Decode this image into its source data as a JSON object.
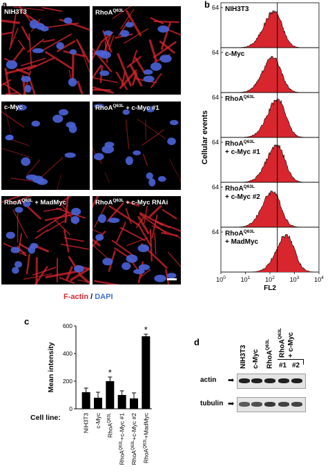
{
  "panel_a": {
    "letter": "a",
    "images": [
      {
        "label": "NIH3T3",
        "sup": "",
        "suffix": "",
        "density": "high"
      },
      {
        "label": "RhoA",
        "sup": "Q63L",
        "suffix": "",
        "density": "high"
      },
      {
        "label": "c-Myc",
        "sup": "",
        "suffix": "",
        "density": "low"
      },
      {
        "label": "RhoA",
        "sup": "Q63L",
        "suffix": " + c-Myc #1",
        "density": "low"
      },
      {
        "label": "RhoA",
        "sup": "Q63L",
        "suffix": " + MadMyc",
        "density": "high"
      },
      {
        "label": "RhoA",
        "sup": "Q63L",
        "suffix": " + c-Myc RNAi",
        "density": "high"
      }
    ],
    "legend_factin": "F-actin",
    "legend_sep": " / ",
    "legend_dapi": "DAPI",
    "colors": {
      "actin": "#d8262e",
      "dapi": "#4a63d8"
    }
  },
  "panel_b": {
    "letter": "b",
    "ylabel": "Cellular events",
    "xlabel": "FL2",
    "ymax_label": "64",
    "x_ticks": [
      {
        "base": "10",
        "exp": "0"
      },
      {
        "base": "10",
        "exp": "1"
      },
      {
        "base": "10",
        "exp": "2"
      },
      {
        "base": "10",
        "exp": "3"
      },
      {
        "base": "10",
        "exp": "4"
      }
    ]
  },
  "panel_c": {
    "letter": "c",
    "cell_line_label": "Cell line:",
    "bar_labels": [
      {
        "main": "NIH3T3",
        "sup": "",
        "suffix": ""
      },
      {
        "main": "c-Myc",
        "sup": "",
        "suffix": ""
      },
      {
        "main": "RhoA",
        "sup": "Q63L",
        "suffix": ""
      },
      {
        "main": "RhoA",
        "sup": "Q63L",
        "suffix": "+c-Myc #1"
      },
      {
        "main": "RhoA",
        "sup": "Q63L",
        "suffix": "+c-Myc #2"
      },
      {
        "main": "RhoA",
        "sup": "Q63L",
        "suffix": "+MadMyc"
      }
    ]
  },
  "panel_d": {
    "letter": "d",
    "lanes": [
      {
        "main": "NIH3T3",
        "sup": "",
        "suffix": ""
      },
      {
        "main": "c-Myc",
        "sup": "",
        "suffix": ""
      },
      {
        "main": "RhoA",
        "sup": "Q63L",
        "suffix": ""
      }
    ],
    "group_label_main": "RhoA",
    "group_label_sup": "Q63L",
    "group_label_line2": "+ c-Myc",
    "sublanes": [
      "#1",
      "#2"
    ],
    "rows": [
      {
        "label": "actin",
        "intensities": [
          0.95,
          0.95,
          0.95,
          0.95,
          0.95
        ]
      },
      {
        "label": "tubulin",
        "intensities": [
          0.7,
          0.75,
          0.85,
          0.8,
          0.8
        ]
      }
    ]
  },
  "chart_data": [
    {
      "type": "area",
      "panel": "b",
      "xscale": "log",
      "xlim": [
        1,
        10000
      ],
      "ylim": [
        0,
        64
      ],
      "xlabel": "FL2",
      "ylabel": "Cellular events",
      "reference_line_x": 200,
      "series": [
        {
          "name": "NIH3T3",
          "peak_x": 150,
          "peak_y": 56
        },
        {
          "name": "c-Myc",
          "peak_x": 135,
          "peak_y": 55
        },
        {
          "name": "RhoAQ63L",
          "peak_x": 210,
          "peak_y": 58
        },
        {
          "name": "RhoAQ63L + c-Myc #1",
          "peak_x": 195,
          "peak_y": 57
        },
        {
          "name": "RhoAQ63L + c-Myc #2",
          "peak_x": 130,
          "peak_y": 55
        },
        {
          "name": "RhoAQ63L + MadMyc",
          "peak_x": 480,
          "peak_y": 57
        }
      ]
    },
    {
      "type": "bar",
      "panel": "c",
      "ylabel": "Mean intensity",
      "ylim": [
        0,
        600
      ],
      "yticks": [
        0,
        200,
        400,
        600
      ],
      "categories": [
        "NIH3T3",
        "c-Myc",
        "RhoAQ63L",
        "RhoAQ63L+c-Myc #1",
        "RhoAQ63L+c-Myc #2",
        "RhoAQ63L+MadMyc"
      ],
      "values": [
        120,
        80,
        200,
        100,
        75,
        525
      ],
      "errors": [
        30,
        40,
        30,
        30,
        40,
        15
      ],
      "significant": [
        false,
        false,
        true,
        false,
        false,
        true
      ],
      "significance_mark": "*"
    }
  ]
}
